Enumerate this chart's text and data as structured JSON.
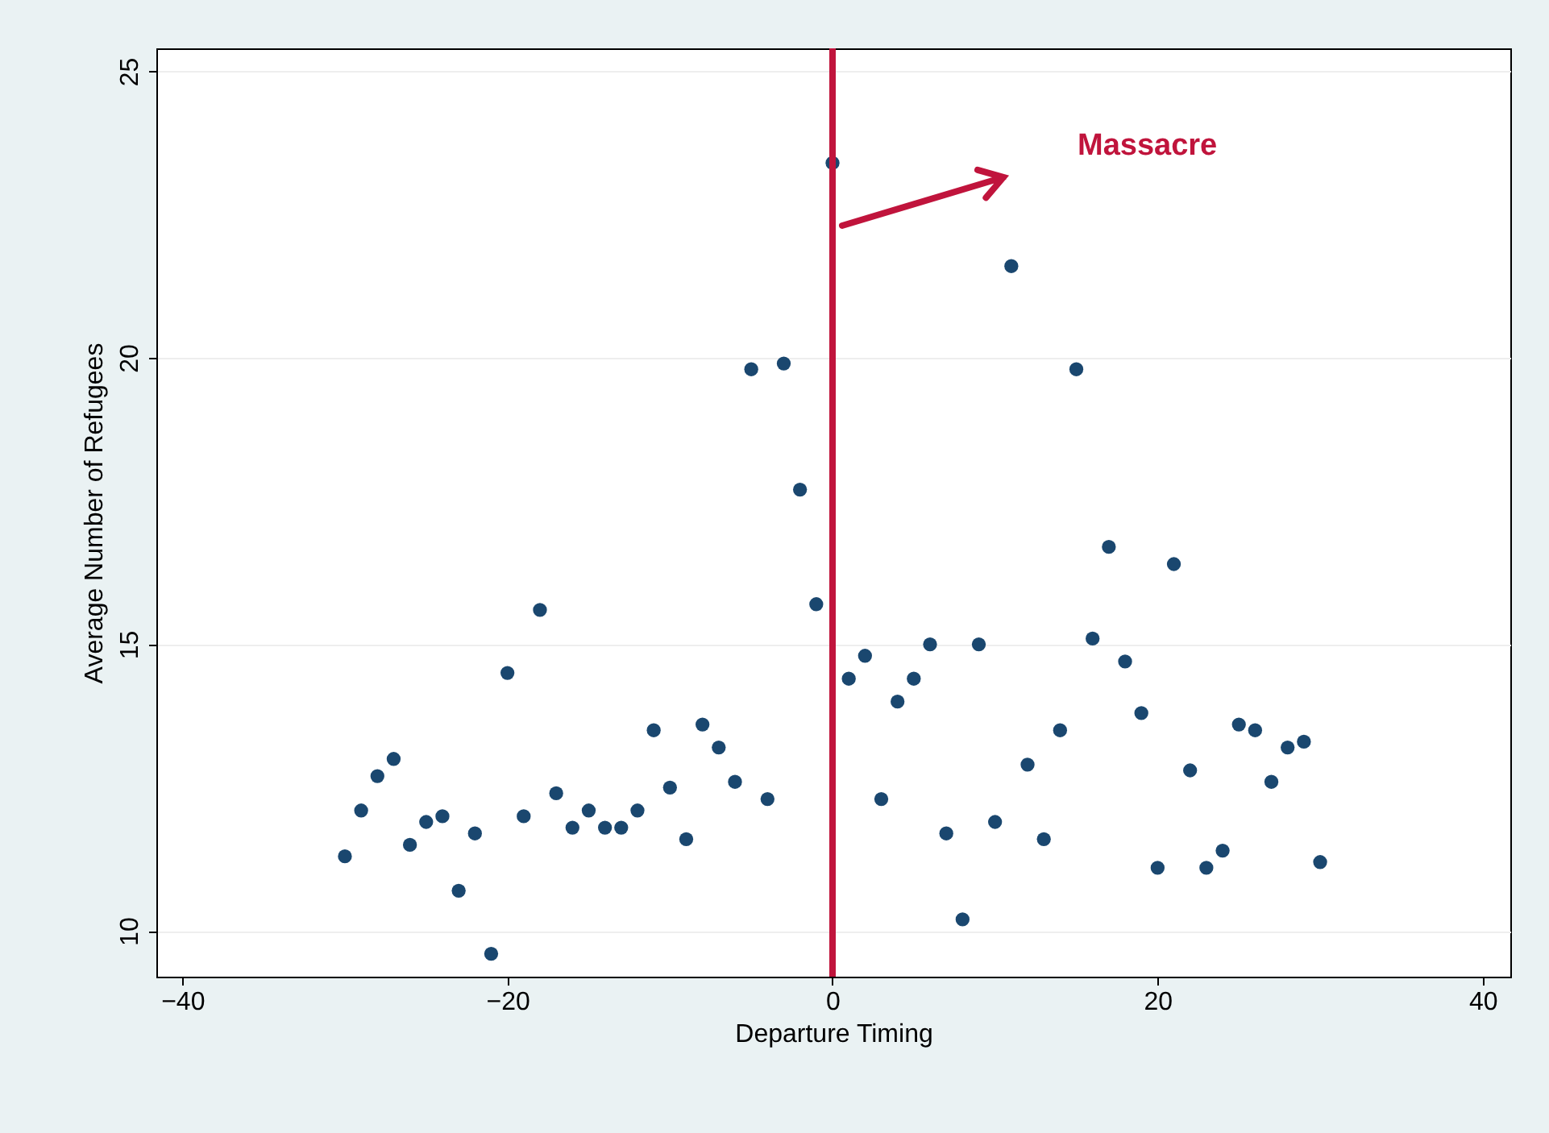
{
  "chart_data": {
    "type": "scatter",
    "xlabel": "Departure Timing",
    "ylabel": "Average Number of Refugees",
    "x": [
      -30,
      -29,
      -28,
      -27,
      -26,
      -25,
      -24,
      -23,
      -22,
      -21,
      -20,
      -19,
      -18,
      -17,
      -16,
      -15,
      -14,
      -13,
      -12,
      -11,
      -10,
      -9,
      -8,
      -7,
      -6,
      -5,
      -4,
      -3,
      -2,
      -1,
      0,
      1,
      2,
      3,
      4,
      5,
      6,
      7,
      8,
      9,
      10,
      11,
      12,
      13,
      14,
      15,
      16,
      17,
      18,
      19,
      20,
      21,
      22,
      23,
      24,
      25,
      26,
      27,
      28,
      29,
      30
    ],
    "series": [
      {
        "color": "#1a476f",
        "values": [
          11.3,
          12.1,
          12.7,
          13.0,
          11.5,
          11.9,
          12.0,
          10.7,
          11.7,
          9.6,
          14.5,
          12.0,
          15.6,
          12.4,
          11.8,
          12.1,
          11.8,
          11.8,
          12.1,
          13.5,
          12.5,
          11.6,
          13.6,
          13.2,
          12.6,
          19.8,
          12.3,
          19.9,
          17.7,
          15.7,
          23.4,
          14.4,
          14.8,
          12.3,
          14.0,
          14.4,
          15.0,
          11.7,
          10.2,
          15.0,
          11.9,
          21.6,
          12.9,
          11.6,
          13.5,
          19.8,
          15.1,
          16.7,
          14.7,
          13.8,
          11.1,
          16.4,
          12.8,
          11.1,
          11.4,
          13.6,
          13.5,
          12.6,
          13.2,
          13.3,
          11.2
        ]
      }
    ],
    "xlim": [
      -41.6,
      41.7
    ],
    "ylim": [
      9.2,
      25.4
    ],
    "xticks": [
      -40,
      -20,
      0,
      20,
      40
    ],
    "yticks": [
      10,
      15,
      20,
      25
    ],
    "grid": "y",
    "marker": "circle",
    "ref_lines": [
      {
        "axis": "x",
        "value": 0,
        "label": "Massacre",
        "color": "#c0143c"
      }
    ]
  }
}
